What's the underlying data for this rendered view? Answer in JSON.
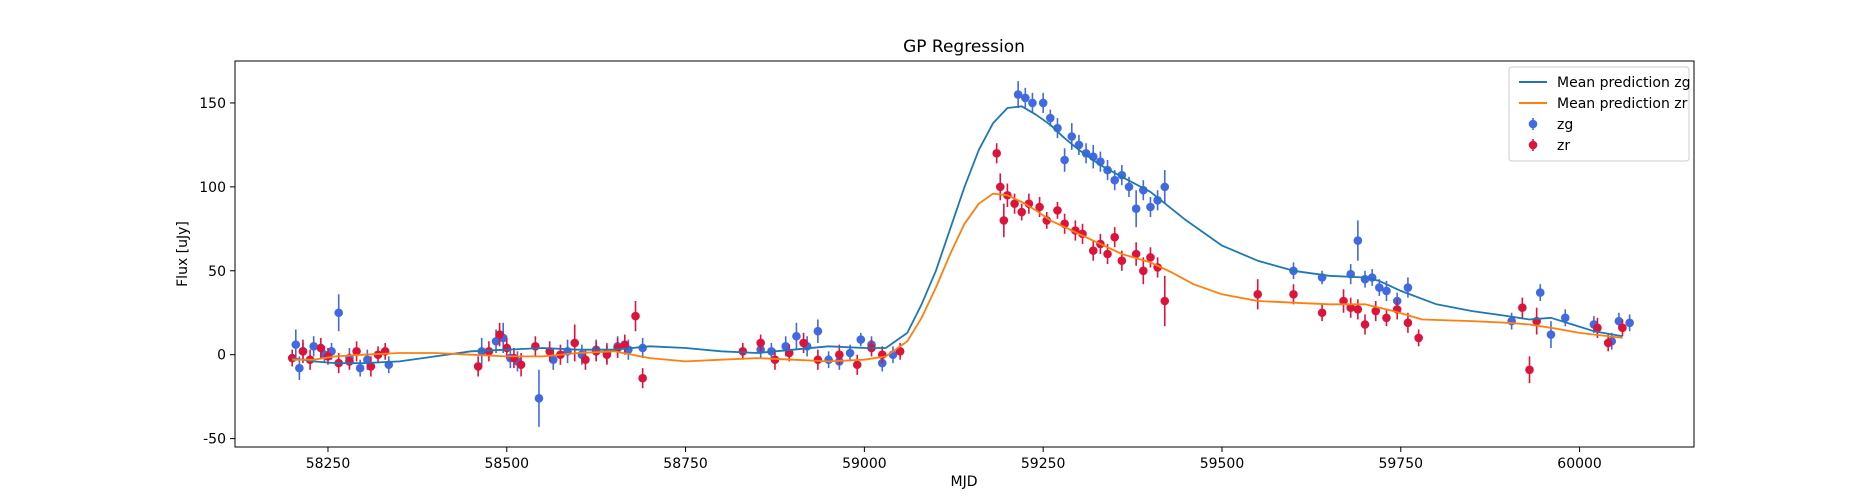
{
  "chart_data": {
    "type": "scatter",
    "title": "GP Regression",
    "xlabel": "MJD",
    "ylabel": "Flux [uJy]",
    "xlim": [
      58120,
      60160
    ],
    "ylim": [
      -55,
      175
    ],
    "xticks": [
      58250,
      58500,
      58750,
      59000,
      59250,
      59500,
      59750,
      60000
    ],
    "yticks": [
      -50,
      0,
      50,
      100,
      150
    ],
    "grid": false,
    "legend_position": "top-right",
    "series": [
      {
        "name": "Mean prediction zg",
        "kind": "line",
        "color": "#1f77b4",
        "x": [
          58200,
          58230,
          58260,
          58300,
          58350,
          58400,
          58450,
          58500,
          58550,
          58600,
          58650,
          58700,
          58750,
          58800,
          58850,
          58900,
          58950,
          59000,
          59030,
          59060,
          59080,
          59100,
          59120,
          59140,
          59160,
          59180,
          59200,
          59220,
          59240,
          59260,
          59280,
          59300,
          59330,
          59360,
          59400,
          59450,
          59500,
          59550,
          59600,
          59650,
          59700,
          59720,
          59750,
          59800,
          59850,
          59900,
          59930,
          59960,
          59990,
          60020,
          60060
        ],
        "y": [
          -2,
          -4,
          -5,
          -5,
          -4,
          -1,
          2,
          3,
          4,
          3,
          3,
          5,
          4,
          2,
          1,
          3,
          5,
          4,
          4,
          13,
          30,
          50,
          75,
          100,
          122,
          138,
          147,
          148,
          143,
          137,
          129,
          122,
          113,
          106,
          97,
          80,
          65,
          56,
          50,
          47,
          46,
          44,
          38,
          30,
          26,
          23,
          21,
          22,
          18,
          14,
          11
        ]
      },
      {
        "name": "Mean prediction zr",
        "kind": "line",
        "color": "#ff7f0e",
        "x": [
          58200,
          58230,
          58260,
          58300,
          58350,
          58400,
          58450,
          58500,
          58550,
          58600,
          58650,
          58700,
          58750,
          58800,
          58850,
          58900,
          58950,
          59000,
          59030,
          59060,
          59080,
          59100,
          59120,
          59140,
          59160,
          59180,
          59200,
          59220,
          59240,
          59260,
          59280,
          59300,
          59330,
          59360,
          59400,
          59430,
          59460,
          59500,
          59550,
          59600,
          59650,
          59700,
          59740,
          59780,
          59850,
          59900,
          59930,
          59960,
          60000,
          60060
        ],
        "y": [
          -3,
          -3,
          -1,
          0,
          1,
          1,
          0,
          -1,
          -1,
          1,
          2,
          -2,
          -4,
          -3,
          -2,
          -3,
          -4,
          -3,
          -1,
          8,
          22,
          40,
          60,
          78,
          90,
          96,
          95,
          91,
          86,
          80,
          76,
          72,
          66,
          60,
          55,
          49,
          42,
          36,
          32,
          31,
          30,
          30,
          26,
          21,
          20,
          19,
          18,
          16,
          13,
          10
        ]
      },
      {
        "name": "zg",
        "kind": "errorbar",
        "color": "#4169e1",
        "x": [
          58205,
          58210,
          58215,
          58230,
          58245,
          58255,
          58265,
          58280,
          58295,
          58305,
          58335,
          58465,
          58485,
          58495,
          58505,
          58515,
          58545,
          58565,
          58585,
          58605,
          58625,
          58640,
          58655,
          58670,
          58690,
          58855,
          58870,
          58890,
          58905,
          58920,
          58935,
          58950,
          58965,
          58980,
          58995,
          59010,
          59025,
          59040,
          59215,
          59225,
          59235,
          59250,
          59260,
          59270,
          59280,
          59290,
          59300,
          59310,
          59320,
          59330,
          59340,
          59350,
          59360,
          59370,
          59380,
          59390,
          59400,
          59410,
          59420,
          59600,
          59640,
          59680,
          59690,
          59700,
          59710,
          59720,
          59730,
          59745,
          59760,
          59905,
          59945,
          59960,
          59980,
          60020,
          60045,
          60055,
          60070
        ],
        "y": [
          6,
          -8,
          2,
          5,
          0,
          2,
          25,
          -2,
          -8,
          -3,
          -6,
          2,
          8,
          10,
          -2,
          -4,
          -26,
          -3,
          2,
          0,
          3,
          1,
          5,
          3,
          4,
          3,
          2,
          5,
          11,
          5,
          14,
          -3,
          -4,
          1,
          9,
          6,
          -5,
          0,
          155,
          153,
          150,
          150,
          141,
          135,
          116,
          130,
          125,
          120,
          118,
          115,
          110,
          104,
          107,
          100,
          87,
          98,
          88,
          92,
          100,
          50,
          46,
          48,
          68,
          45,
          46,
          40,
          38,
          32,
          40,
          20,
          37,
          12,
          22,
          18,
          8,
          20,
          19
        ],
        "yerr": [
          9,
          7,
          5,
          6,
          5,
          5,
          11,
          6,
          5,
          6,
          5,
          8,
          7,
          9,
          6,
          6,
          17,
          6,
          7,
          6,
          6,
          6,
          6,
          6,
          6,
          5,
          5,
          6,
          8,
          6,
          7,
          5,
          5,
          5,
          4,
          5,
          5,
          5,
          8,
          6,
          6,
          6,
          5,
          6,
          7,
          8,
          6,
          6,
          7,
          6,
          6,
          6,
          6,
          6,
          11,
          6,
          6,
          6,
          10,
          5,
          4,
          6,
          12,
          5,
          5,
          5,
          6,
          5,
          6,
          5,
          5,
          8,
          5,
          5,
          5,
          5,
          5
        ]
      },
      {
        "name": "zr",
        "kind": "errorbar",
        "color": "#dc143c",
        "x": [
          58200,
          58215,
          58225,
          58240,
          58250,
          58265,
          58280,
          58290,
          58310,
          58320,
          58330,
          58460,
          58475,
          58490,
          58500,
          58510,
          58520,
          58540,
          58560,
          58575,
          58595,
          58610,
          58625,
          58640,
          58655,
          58665,
          58680,
          58690,
          58830,
          58855,
          58875,
          58895,
          58915,
          58935,
          58965,
          58990,
          59010,
          59025,
          59050,
          59185,
          59190,
          59195,
          59200,
          59210,
          59220,
          59230,
          59245,
          59255,
          59270,
          59280,
          59295,
          59305,
          59320,
          59330,
          59340,
          59350,
          59360,
          59380,
          59390,
          59400,
          59410,
          59420,
          59550,
          59600,
          59640,
          59670,
          59680,
          59690,
          59700,
          59715,
          59730,
          59745,
          59760,
          59775,
          59920,
          59930,
          59940,
          60025,
          60040,
          60060
        ],
        "y": [
          -2,
          2,
          -3,
          4,
          -1,
          -5,
          -4,
          2,
          -7,
          0,
          2,
          -7,
          2,
          12,
          4,
          -2,
          -6,
          5,
          2,
          0,
          7,
          -3,
          2,
          0,
          4,
          6,
          23,
          -14,
          2,
          7,
          -3,
          1,
          7,
          -3,
          0,
          -6,
          4,
          0,
          2,
          120,
          100,
          80,
          95,
          90,
          85,
          90,
          88,
          80,
          86,
          78,
          74,
          72,
          62,
          66,
          60,
          70,
          56,
          60,
          50,
          58,
          52,
          32,
          36,
          36,
          25,
          32,
          28,
          27,
          18,
          26,
          22,
          27,
          19,
          10,
          28,
          -9,
          20,
          16,
          7,
          16
        ],
        "yerr": [
          5,
          7,
          6,
          6,
          5,
          6,
          5,
          6,
          6,
          5,
          5,
          6,
          6,
          7,
          6,
          6,
          7,
          6,
          6,
          6,
          11,
          6,
          6,
          6,
          6,
          6,
          9,
          6,
          5,
          5,
          6,
          5,
          6,
          6,
          6,
          6,
          5,
          5,
          5,
          6,
          8,
          10,
          7,
          6,
          5,
          6,
          6,
          5,
          5,
          6,
          6,
          6,
          6,
          6,
          6,
          6,
          6,
          7,
          8,
          6,
          6,
          15,
          9,
          6,
          5,
          7,
          6,
          6,
          6,
          6,
          5,
          6,
          6,
          5,
          6,
          8,
          8,
          6,
          5,
          5
        ]
      }
    ]
  }
}
